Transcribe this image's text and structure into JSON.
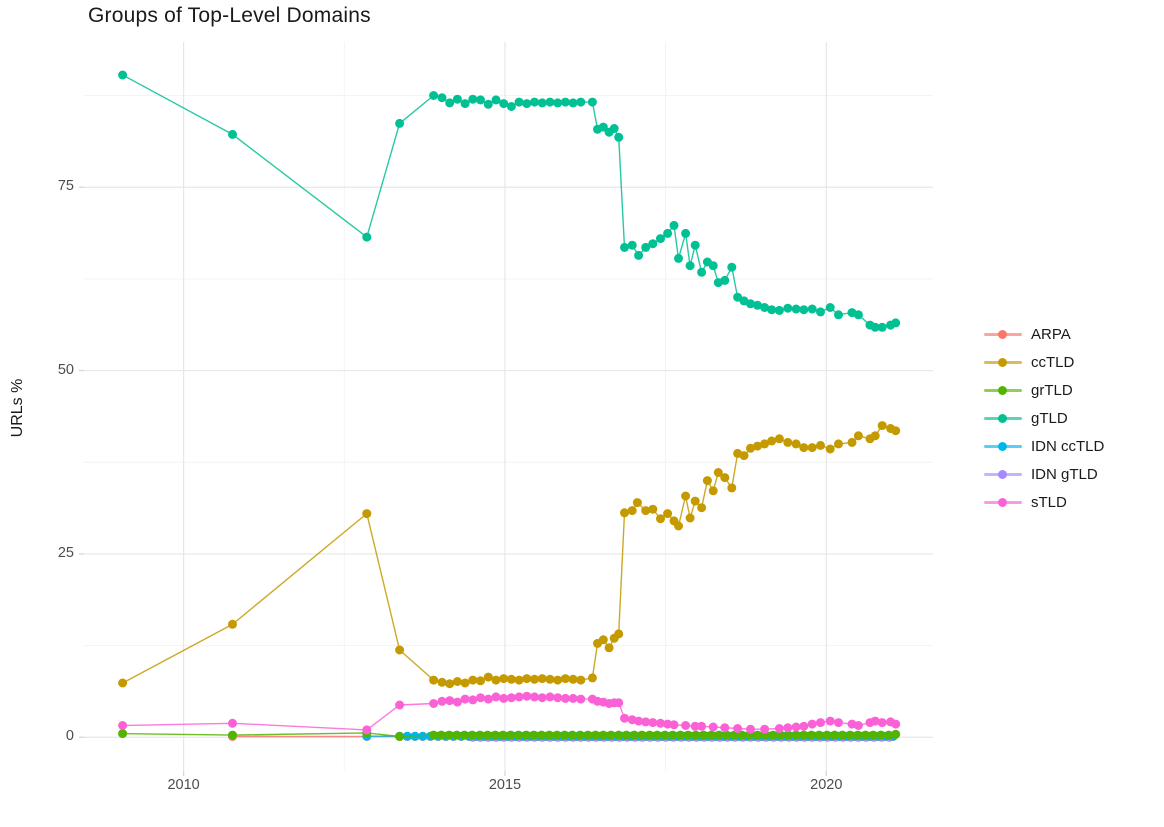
{
  "chart_data": {
    "type": "line",
    "title": "Groups of Top-Level Domains",
    "ylabel": "URLs %",
    "xlabel": "",
    "grid": true,
    "legend_position": "right",
    "xlim": [
      2008.45,
      2021.66
    ],
    "ylim": [
      -4.6,
      94.8
    ],
    "x_ticks": [
      2010,
      2015,
      2020
    ],
    "x_tick_labels": [
      "2010",
      "2015",
      "2020"
    ],
    "x_minor_ticks": [
      2012.5,
      2017.5
    ],
    "y_ticks": [
      0,
      25,
      50,
      75
    ],
    "y_tick_labels": [
      "0",
      "25",
      "50",
      "75"
    ],
    "y_minor_ticks": [
      12.5,
      37.5,
      62.5,
      87.5
    ],
    "colors": {
      "major_grid": "#e7e7e7",
      "minor_grid": "#f2f2f2",
      "tick_mark": "#d9d9d9",
      "tick_text": "#4d4d4d",
      "text": "#1a1a1a"
    },
    "series": [
      {
        "name": "ARPA",
        "color": "#F8766D",
        "z": 2,
        "points": [
          [
            2010.76,
            0.1
          ],
          [
            2012.85,
            0.1
          ]
        ],
        "flat_runs": [
          {
            "from": 2013.36,
            "to": 2021.08,
            "step": 0.12,
            "value": 0.1
          }
        ]
      },
      {
        "name": "ccTLD",
        "color": "#C49A00",
        "z": 5,
        "points": [
          [
            2009.05,
            7.4
          ],
          [
            2010.76,
            15.4
          ],
          [
            2012.85,
            30.5
          ],
          [
            2013.36,
            11.9
          ],
          [
            2013.89,
            7.8
          ],
          [
            2014.02,
            7.5
          ],
          [
            2014.14,
            7.3
          ],
          [
            2014.26,
            7.6
          ],
          [
            2014.38,
            7.4
          ],
          [
            2014.5,
            7.8
          ],
          [
            2014.62,
            7.7
          ],
          [
            2014.74,
            8.2
          ],
          [
            2014.86,
            7.8
          ],
          [
            2014.98,
            8.0
          ],
          [
            2015.1,
            7.9
          ],
          [
            2015.22,
            7.8
          ],
          [
            2015.34,
            8.0
          ],
          [
            2015.46,
            7.9
          ],
          [
            2015.58,
            8.0
          ],
          [
            2015.7,
            7.9
          ],
          [
            2015.82,
            7.8
          ],
          [
            2015.94,
            8.0
          ],
          [
            2016.06,
            7.9
          ],
          [
            2016.18,
            7.8
          ],
          [
            2016.36,
            8.1
          ],
          [
            2016.44,
            12.8
          ],
          [
            2016.53,
            13.3
          ],
          [
            2016.62,
            12.2
          ],
          [
            2016.7,
            13.5
          ],
          [
            2016.77,
            14.1
          ],
          [
            2016.86,
            30.6
          ],
          [
            2016.98,
            30.9
          ],
          [
            2017.06,
            32.0
          ],
          [
            2017.19,
            30.9
          ],
          [
            2017.3,
            31.1
          ],
          [
            2017.42,
            29.8
          ],
          [
            2017.53,
            30.5
          ],
          [
            2017.63,
            29.5
          ],
          [
            2017.7,
            28.8
          ],
          [
            2017.81,
            32.9
          ],
          [
            2017.88,
            29.9
          ],
          [
            2017.96,
            32.2
          ],
          [
            2018.06,
            31.3
          ],
          [
            2018.15,
            35.0
          ],
          [
            2018.24,
            33.6
          ],
          [
            2018.32,
            36.1
          ],
          [
            2018.42,
            35.4
          ],
          [
            2018.53,
            34.0
          ],
          [
            2018.62,
            38.7
          ],
          [
            2018.72,
            38.4
          ],
          [
            2018.82,
            39.4
          ],
          [
            2018.93,
            39.7
          ],
          [
            2019.04,
            40.0
          ],
          [
            2019.15,
            40.4
          ],
          [
            2019.27,
            40.7
          ],
          [
            2019.4,
            40.2
          ],
          [
            2019.53,
            40.0
          ],
          [
            2019.65,
            39.5
          ],
          [
            2019.78,
            39.5
          ],
          [
            2019.91,
            39.8
          ],
          [
            2020.06,
            39.3
          ],
          [
            2020.19,
            40.0
          ],
          [
            2020.4,
            40.2
          ],
          [
            2020.5,
            41.1
          ],
          [
            2020.68,
            40.7
          ],
          [
            2020.76,
            41.1
          ],
          [
            2020.87,
            42.5
          ],
          [
            2021.0,
            42.1
          ],
          [
            2021.08,
            41.8
          ]
        ]
      },
      {
        "name": "grTLD",
        "color": "#53B400",
        "z": 4,
        "points": [
          [
            2009.05,
            0.5
          ],
          [
            2010.76,
            0.3
          ],
          [
            2012.85,
            0.6
          ],
          [
            2013.36,
            0.1
          ],
          [
            2021.08,
            0.4
          ]
        ],
        "flat_runs": [
          {
            "from": 2013.89,
            "to": 2021.08,
            "step": 0.12,
            "value": 0.3
          }
        ]
      },
      {
        "name": "gTLD",
        "color": "#00C094",
        "z": 6,
        "points": [
          [
            2009.05,
            90.3
          ],
          [
            2010.76,
            82.2
          ],
          [
            2012.85,
            68.2
          ],
          [
            2013.36,
            83.7
          ],
          [
            2013.89,
            87.5
          ],
          [
            2014.02,
            87.2
          ],
          [
            2014.14,
            86.5
          ],
          [
            2014.26,
            87.0
          ],
          [
            2014.38,
            86.4
          ],
          [
            2014.5,
            87.0
          ],
          [
            2014.62,
            86.9
          ],
          [
            2014.74,
            86.3
          ],
          [
            2014.86,
            86.9
          ],
          [
            2014.98,
            86.4
          ],
          [
            2015.1,
            86.0
          ],
          [
            2015.22,
            86.6
          ],
          [
            2015.34,
            86.4
          ],
          [
            2015.46,
            86.6
          ],
          [
            2015.58,
            86.5
          ],
          [
            2015.7,
            86.6
          ],
          [
            2015.82,
            86.5
          ],
          [
            2015.94,
            86.6
          ],
          [
            2016.06,
            86.5
          ],
          [
            2016.18,
            86.6
          ],
          [
            2016.36,
            86.6
          ],
          [
            2016.44,
            82.9
          ],
          [
            2016.53,
            83.2
          ],
          [
            2016.62,
            82.5
          ],
          [
            2016.7,
            83.0
          ],
          [
            2016.77,
            81.8
          ],
          [
            2016.86,
            66.8
          ],
          [
            2016.98,
            67.1
          ],
          [
            2017.08,
            65.7
          ],
          [
            2017.19,
            66.8
          ],
          [
            2017.3,
            67.3
          ],
          [
            2017.42,
            68.0
          ],
          [
            2017.53,
            68.7
          ],
          [
            2017.63,
            69.8
          ],
          [
            2017.7,
            65.3
          ],
          [
            2017.81,
            68.7
          ],
          [
            2017.88,
            64.3
          ],
          [
            2017.96,
            67.1
          ],
          [
            2018.06,
            63.4
          ],
          [
            2018.15,
            64.8
          ],
          [
            2018.24,
            64.3
          ],
          [
            2018.32,
            62.0
          ],
          [
            2018.42,
            62.3
          ],
          [
            2018.53,
            64.1
          ],
          [
            2018.62,
            60.0
          ],
          [
            2018.72,
            59.5
          ],
          [
            2018.82,
            59.1
          ],
          [
            2018.93,
            58.9
          ],
          [
            2019.04,
            58.6
          ],
          [
            2019.15,
            58.3
          ],
          [
            2019.27,
            58.2
          ],
          [
            2019.4,
            58.5
          ],
          [
            2019.53,
            58.4
          ],
          [
            2019.65,
            58.3
          ],
          [
            2019.78,
            58.4
          ],
          [
            2019.91,
            58.0
          ],
          [
            2020.06,
            58.6
          ],
          [
            2020.19,
            57.6
          ],
          [
            2020.4,
            57.9
          ],
          [
            2020.5,
            57.6
          ],
          [
            2020.68,
            56.2
          ],
          [
            2020.76,
            55.9
          ],
          [
            2020.87,
            55.9
          ],
          [
            2021.0,
            56.2
          ],
          [
            2021.08,
            56.5
          ]
        ]
      },
      {
        "name": "IDN ccTLD",
        "color": "#00B6EB",
        "z": 3,
        "points": [
          [
            2012.85,
            0.15
          ]
        ],
        "flat_runs": [
          {
            "from": 2013.36,
            "to": 2021.08,
            "step": 0.12,
            "value": 0.15
          }
        ]
      },
      {
        "name": "IDN gTLD",
        "color": "#A58AFF",
        "z": 1,
        "points": [],
        "flat_runs": [
          {
            "from": 2014.5,
            "to": 2021.08,
            "step": 0.12,
            "value": 0.0
          }
        ]
      },
      {
        "name": "sTLD",
        "color": "#FB61D7",
        "z": 7,
        "points": [
          [
            2009.05,
            1.6
          ],
          [
            2010.76,
            1.9
          ],
          [
            2012.85,
            1.0
          ],
          [
            2013.36,
            4.4
          ],
          [
            2013.89,
            4.6
          ],
          [
            2014.02,
            4.9
          ],
          [
            2014.14,
            5.0
          ],
          [
            2014.26,
            4.8
          ],
          [
            2014.38,
            5.2
          ],
          [
            2014.5,
            5.1
          ],
          [
            2014.62,
            5.4
          ],
          [
            2014.74,
            5.2
          ],
          [
            2014.86,
            5.5
          ],
          [
            2014.98,
            5.3
          ],
          [
            2015.1,
            5.4
          ],
          [
            2015.22,
            5.5
          ],
          [
            2015.34,
            5.6
          ],
          [
            2015.46,
            5.5
          ],
          [
            2015.58,
            5.4
          ],
          [
            2015.7,
            5.5
          ],
          [
            2015.82,
            5.4
          ],
          [
            2015.94,
            5.3
          ],
          [
            2016.06,
            5.3
          ],
          [
            2016.18,
            5.2
          ],
          [
            2016.36,
            5.2
          ],
          [
            2016.44,
            4.9
          ],
          [
            2016.53,
            4.8
          ],
          [
            2016.62,
            4.6
          ],
          [
            2016.7,
            4.7
          ],
          [
            2016.77,
            4.7
          ],
          [
            2016.86,
            2.6
          ],
          [
            2016.98,
            2.4
          ],
          [
            2017.08,
            2.2
          ],
          [
            2017.19,
            2.1
          ],
          [
            2017.3,
            2.0
          ],
          [
            2017.42,
            1.9
          ],
          [
            2017.53,
            1.8
          ],
          [
            2017.63,
            1.7
          ],
          [
            2017.81,
            1.6
          ],
          [
            2017.96,
            1.5
          ],
          [
            2018.06,
            1.5
          ],
          [
            2018.24,
            1.4
          ],
          [
            2018.42,
            1.3
          ],
          [
            2018.62,
            1.2
          ],
          [
            2018.82,
            1.1
          ],
          [
            2019.04,
            1.1
          ],
          [
            2019.27,
            1.2
          ],
          [
            2019.4,
            1.3
          ],
          [
            2019.53,
            1.4
          ],
          [
            2019.65,
            1.5
          ],
          [
            2019.78,
            1.8
          ],
          [
            2019.91,
            2.0
          ],
          [
            2020.06,
            2.2
          ],
          [
            2020.19,
            2.0
          ],
          [
            2020.4,
            1.8
          ],
          [
            2020.5,
            1.6
          ],
          [
            2020.68,
            2.0
          ],
          [
            2020.76,
            2.2
          ],
          [
            2020.87,
            2.0
          ],
          [
            2021.0,
            2.1
          ],
          [
            2021.08,
            1.8
          ]
        ]
      }
    ]
  }
}
